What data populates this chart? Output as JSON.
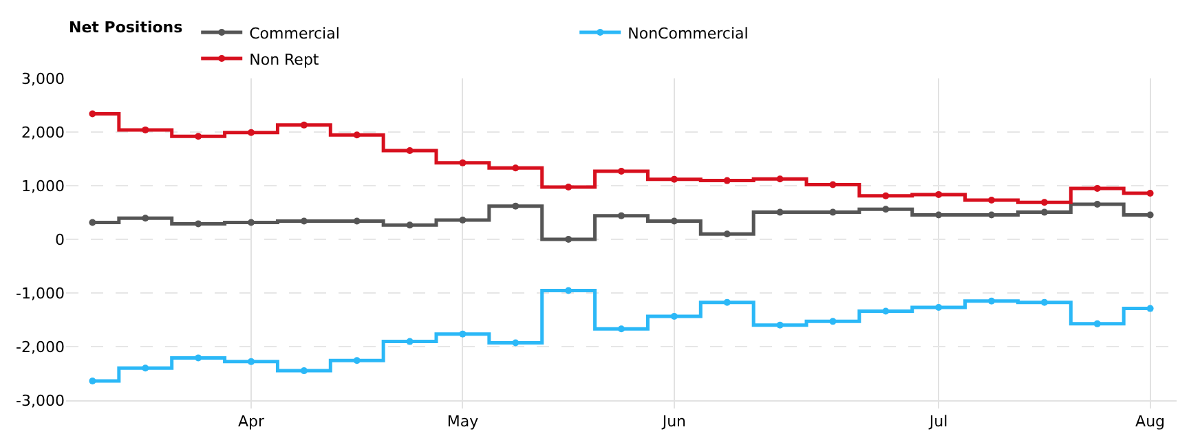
{
  "chart_data": {
    "type": "step",
    "legend_title": "Net Positions",
    "categories": [
      null,
      null,
      null,
      "Apr",
      null,
      null,
      null,
      "May",
      null,
      null,
      null,
      "Jun",
      null,
      null,
      null,
      null,
      "Jul",
      null,
      null,
      null,
      "Aug"
    ],
    "series": [
      {
        "name": "Commercial",
        "color": "#555555",
        "values": [
          315,
          395,
          290,
          315,
          340,
          340,
          265,
          360,
          620,
          0,
          440,
          340,
          100,
          505,
          505,
          560,
          455,
          455,
          505,
          655,
          455
        ]
      },
      {
        "name": "NonCommercial",
        "color": "#2bb8f7",
        "values": [
          -2640,
          -2400,
          -2210,
          -2280,
          -2450,
          -2260,
          -1905,
          -1765,
          -1930,
          -955,
          -1670,
          -1435,
          -1175,
          -1600,
          -1530,
          -1340,
          -1270,
          -1150,
          -1175,
          -1575,
          -1290
        ]
      },
      {
        "name": "Non Rept",
        "color": "#d7101e",
        "values": [
          2340,
          2040,
          1920,
          1990,
          2130,
          1945,
          1655,
          1425,
          1330,
          975,
          1270,
          1120,
          1095,
          1125,
          1020,
          810,
          835,
          730,
          690,
          950,
          860
        ]
      }
    ],
    "ylim": [
      -3000,
      3000
    ],
    "yticks": [
      {
        "value": -3000,
        "label": "-3,000"
      },
      {
        "value": -2000,
        "label": "-2,000"
      },
      {
        "value": -1000,
        "label": "-1,000"
      },
      0,
      {
        "value": 1000,
        "label": "1,000"
      },
      {
        "value": 2000,
        "label": "2,000"
      },
      {
        "value": 3000,
        "label": "3,000"
      }
    ],
    "grid": true,
    "legend": "top left",
    "marker": "circle",
    "line_style": "solid"
  }
}
